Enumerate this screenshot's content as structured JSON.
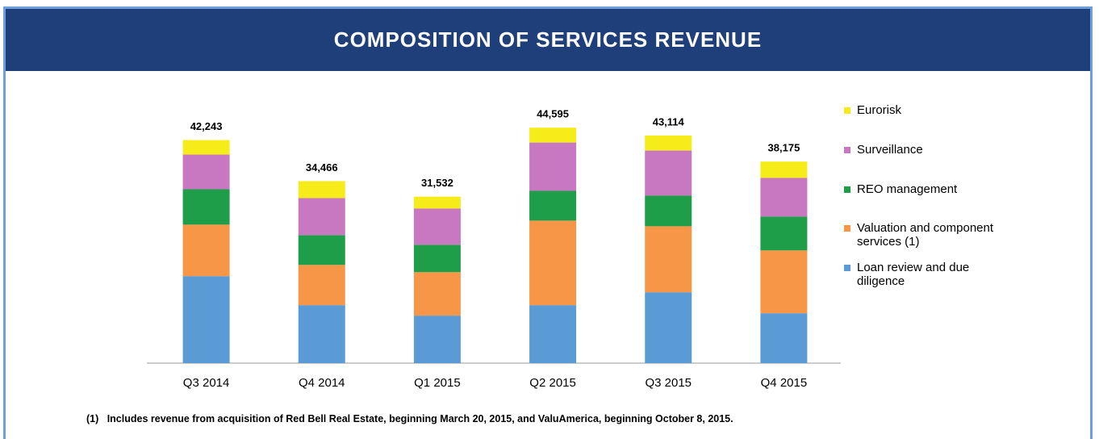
{
  "chart_data": {
    "type": "stacked_bar",
    "title": "COMPOSITION OF SERVICES REVENUE",
    "categories": [
      "Q3 2014",
      "Q4 2014",
      "Q1 2015",
      "Q2 2015",
      "Q3 2015",
      "Q4 2015"
    ],
    "series": [
      {
        "name": "Loan review and due diligence",
        "color": "#5b9bd5",
        "values": [
          16470,
          10980,
          9000,
          10980,
          13420,
          9455
        ]
      },
      {
        "name": "Valuation and component services (1)",
        "color": "#f79646",
        "values": [
          9760,
          7625,
          8235,
          16010,
          12505,
          11895
        ]
      },
      {
        "name": "REO management",
        "color": "#1e9e48",
        "values": [
          6710,
          5640,
          5185,
          5640,
          5795,
          6405
        ]
      },
      {
        "name": "Surveillance",
        "color": "#c878c0",
        "values": [
          6560,
          7015,
          6860,
          9150,
          8540,
          7320
        ]
      },
      {
        "name": "Eurorisk",
        "color": "#f5ec1a",
        "values": [
          2743,
          3206,
          2252,
          2815,
          2854,
          3100
        ]
      }
    ],
    "totals": [
      42243,
      34466,
      31532,
      44595,
      43114,
      38175
    ],
    "total_labels": [
      "42,243",
      "34,466",
      "31,532",
      "44,595",
      "43,114",
      "38,175"
    ],
    "ylim": [
      0,
      46000
    ],
    "footnote": "(1)   Includes revenue from acquisition of Red Bell Real Estate, beginning March 20, 2015, and ValuAmerica, beginning October 8, 2015."
  }
}
